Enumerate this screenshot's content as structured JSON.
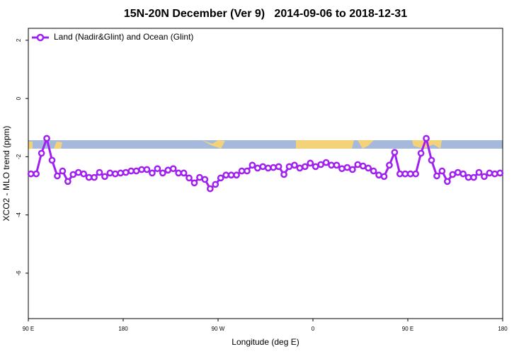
{
  "chart_data": {
    "type": "line",
    "title": "15N-20N December (Ver 9)   2014-09-06 to 2018-12-31",
    "x_label": "Longitude (deg E)",
    "y_label": "XCO2 - MLO trend (ppm)",
    "x": [
      92.5,
      97.5,
      102.5,
      107.5,
      112.5,
      117.5,
      122.5,
      127.5,
      132.5,
      137.5,
      142.5,
      147.5,
      152.5,
      157.5,
      162.5,
      167.5,
      172.5,
      177.5,
      182.5,
      187.5,
      192.5,
      197.5,
      202.5,
      207.5,
      212.5,
      217.5,
      222.5,
      227.5,
      232.5,
      237.5,
      242.5,
      247.5,
      252.5,
      257.5,
      262.5,
      267.5,
      272.5,
      277.5,
      282.5,
      287.5,
      292.5,
      297.5,
      302.5,
      307.5,
      312.5,
      317.5,
      322.5,
      327.5,
      332.5,
      337.5,
      342.5,
      347.5,
      352.5,
      357.5,
      362.5,
      367.5,
      372.5,
      377.5,
      382.5,
      387.5,
      392.5,
      397.5,
      402.5,
      407.5,
      412.5,
      417.5,
      422.5,
      427.5,
      432.5,
      437.5,
      442.5,
      447.5,
      452.5,
      457.5,
      462.5,
      467.5,
      472.5,
      477.5,
      482.5,
      487.5,
      492.5,
      497.5,
      502.5,
      507.5,
      512.5,
      517.5,
      522.5,
      527.5,
      532.5,
      537.5
    ],
    "series": [
      {
        "name": "Land (Nadir&Glint) and Ocean (Glint)",
        "color": "#a020f0",
        "values": [
          -2.59,
          -2.59,
          -1.88,
          -1.37,
          -2.12,
          -2.66,
          -2.49,
          -2.85,
          -2.61,
          -2.54,
          -2.59,
          -2.71,
          -2.71,
          -2.54,
          -2.68,
          -2.56,
          -2.59,
          -2.56,
          -2.54,
          -2.49,
          -2.49,
          -2.44,
          -2.44,
          -2.56,
          -2.41,
          -2.56,
          -2.46,
          -2.41,
          -2.56,
          -2.56,
          -2.73,
          -2.9,
          -2.71,
          -2.78,
          -3.1,
          -2.95,
          -2.73,
          -2.63,
          -2.63,
          -2.63,
          -2.49,
          -2.49,
          -2.29,
          -2.39,
          -2.34,
          -2.39,
          -2.37,
          -2.34,
          -2.61,
          -2.34,
          -2.29,
          -2.39,
          -2.34,
          -2.22,
          -2.34,
          -2.27,
          -2.2,
          -2.29,
          -2.29,
          -2.41,
          -2.37,
          -2.44,
          -2.27,
          -2.32,
          -2.39,
          -2.49,
          -2.63,
          -2.68,
          -2.29,
          -1.85,
          -2.59,
          -2.59,
          -2.59,
          -2.59,
          -1.88,
          -1.37,
          -2.12,
          -2.66,
          -2.49,
          -2.85,
          -2.61,
          -2.54,
          -2.59,
          -2.71,
          -2.71,
          -2.54,
          -2.68,
          -2.56,
          -2.59,
          -2.56
        ]
      }
    ],
    "xlim": [
      90,
      540
    ],
    "xticks": [
      {
        "value": 90,
        "label": "90 E"
      },
      {
        "value": 180,
        "label": "180"
      },
      {
        "value": 270,
        "label": "90 W"
      },
      {
        "value": 360,
        "label": "0"
      },
      {
        "value": 450,
        "label": "90 E"
      },
      {
        "value": 540,
        "label": "180"
      }
    ],
    "ylim": [
      -7.56,
      2.41
    ],
    "yticks": [
      2,
      0,
      -2,
      -4,
      -6
    ],
    "legend": "top-left"
  }
}
